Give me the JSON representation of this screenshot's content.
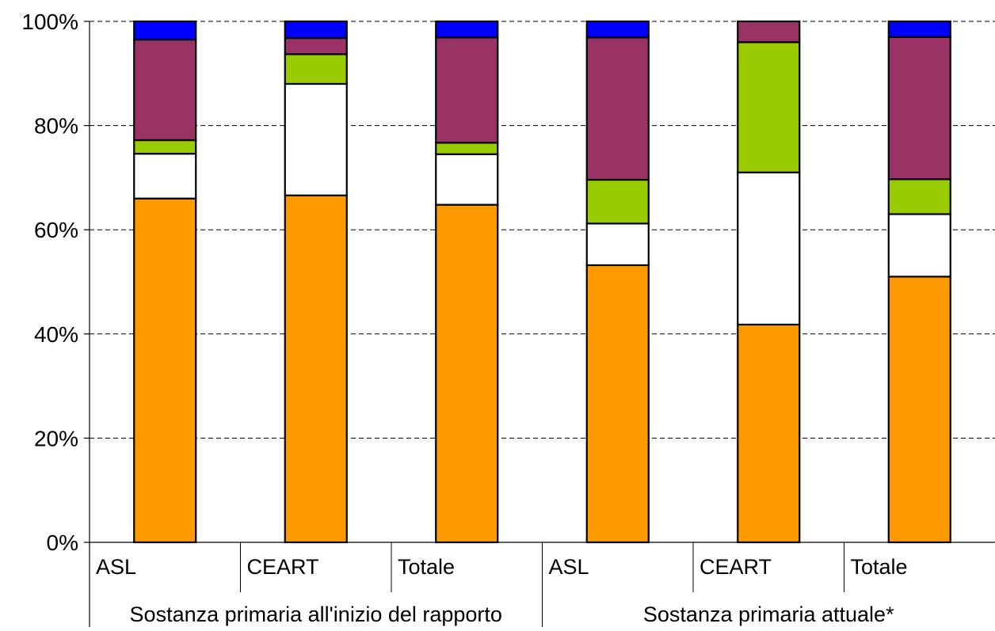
{
  "chart_data": {
    "type": "bar",
    "stacked": true,
    "percent_stacked": true,
    "grid": true,
    "legend": "none",
    "title": "",
    "xlabel": "",
    "ylabel": "",
    "ylim": [
      0,
      100
    ],
    "yticks": [
      "0%",
      "20%",
      "40%",
      "60%",
      "80%",
      "100%"
    ],
    "categories": [
      "ASL",
      "CEART",
      "Totale",
      "ASL",
      "CEART",
      "Totale"
    ],
    "groups": [
      {
        "label": "Sostanza primaria all'inizio del rapporto",
        "categories": [
          0,
          1,
          2
        ]
      },
      {
        "label": "Sostanza primaria attuale*",
        "categories": [
          3,
          4,
          5
        ]
      }
    ],
    "series": [
      {
        "color": "#FF9900",
        "values": [
          66.0,
          66.6,
          64.8,
          53.2,
          41.8,
          51.0
        ]
      },
      {
        "color": "#FFFFFF",
        "values": [
          8.6,
          21.4,
          9.7,
          8.0,
          29.2,
          12.0
        ]
      },
      {
        "color": "#99CC00",
        "values": [
          2.6,
          5.7,
          2.2,
          8.4,
          25.0,
          6.7
        ]
      },
      {
        "color": "#993366",
        "values": [
          19.3,
          3.1,
          20.2,
          27.3,
          4.0,
          27.3
        ]
      },
      {
        "color": "#0000FF",
        "values": [
          3.5,
          3.2,
          3.1,
          3.1,
          0.0,
          3.0
        ]
      }
    ]
  }
}
